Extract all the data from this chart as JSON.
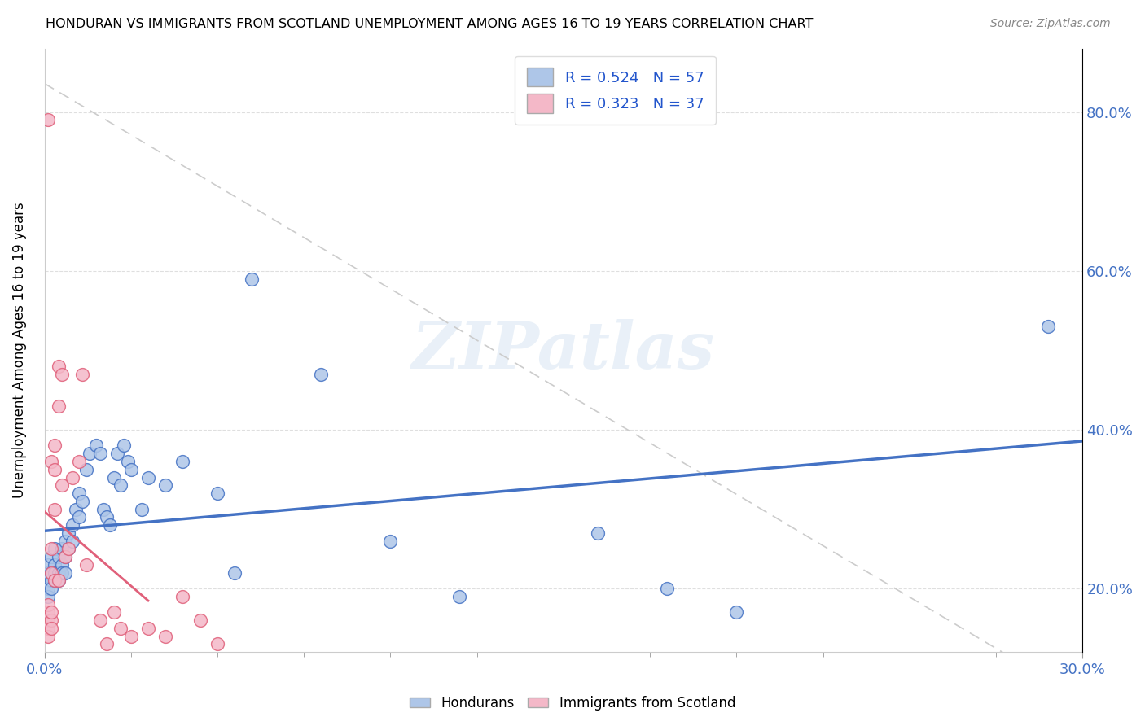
{
  "title": "HONDURAN VS IMMIGRANTS FROM SCOTLAND UNEMPLOYMENT AMONG AGES 16 TO 19 YEARS CORRELATION CHART",
  "source": "Source: ZipAtlas.com",
  "ylabel_label": "Unemployment Among Ages 16 to 19 years",
  "xlim": [
    0.0,
    0.3
  ],
  "ylim": [
    0.12,
    0.88
  ],
  "watermark": "ZIPatlas",
  "blue_R": 0.524,
  "blue_N": 57,
  "pink_R": 0.323,
  "pink_N": 37,
  "blue_color": "#4472c4",
  "blue_fill": "#aec6e8",
  "pink_color": "#e0607a",
  "pink_fill": "#f4b8c8",
  "ref_line_color": "#cccccc",
  "grid_color": "#d8d8d8",
  "blue_scatter_x": [
    0.001,
    0.001,
    0.001,
    0.001,
    0.001,
    0.002,
    0.002,
    0.002,
    0.002,
    0.003,
    0.003,
    0.003,
    0.003,
    0.004,
    0.004,
    0.004,
    0.005,
    0.005,
    0.005,
    0.006,
    0.006,
    0.006,
    0.007,
    0.007,
    0.008,
    0.008,
    0.009,
    0.01,
    0.01,
    0.011,
    0.012,
    0.013,
    0.015,
    0.016,
    0.017,
    0.018,
    0.019,
    0.02,
    0.021,
    0.022,
    0.023,
    0.024,
    0.025,
    0.028,
    0.03,
    0.035,
    0.04,
    0.05,
    0.055,
    0.06,
    0.08,
    0.1,
    0.12,
    0.16,
    0.18,
    0.2,
    0.29
  ],
  "blue_scatter_y": [
    0.21,
    0.22,
    0.2,
    0.23,
    0.19,
    0.21,
    0.22,
    0.24,
    0.2,
    0.23,
    0.22,
    0.21,
    0.25,
    0.22,
    0.24,
    0.21,
    0.23,
    0.25,
    0.22,
    0.26,
    0.24,
    0.22,
    0.27,
    0.25,
    0.28,
    0.26,
    0.3,
    0.29,
    0.32,
    0.31,
    0.35,
    0.37,
    0.38,
    0.37,
    0.3,
    0.29,
    0.28,
    0.34,
    0.37,
    0.33,
    0.38,
    0.36,
    0.35,
    0.3,
    0.34,
    0.33,
    0.36,
    0.32,
    0.22,
    0.59,
    0.47,
    0.26,
    0.19,
    0.27,
    0.2,
    0.17,
    0.53
  ],
  "pink_scatter_x": [
    0.001,
    0.001,
    0.001,
    0.001,
    0.001,
    0.001,
    0.002,
    0.002,
    0.002,
    0.002,
    0.002,
    0.002,
    0.003,
    0.003,
    0.003,
    0.003,
    0.004,
    0.004,
    0.004,
    0.005,
    0.005,
    0.006,
    0.007,
    0.008,
    0.01,
    0.011,
    0.012,
    0.016,
    0.018,
    0.02,
    0.022,
    0.025,
    0.03,
    0.035,
    0.04,
    0.045,
    0.05
  ],
  "pink_scatter_y": [
    0.16,
    0.15,
    0.14,
    0.17,
    0.18,
    0.79,
    0.16,
    0.15,
    0.17,
    0.22,
    0.25,
    0.36,
    0.21,
    0.3,
    0.35,
    0.38,
    0.21,
    0.43,
    0.48,
    0.33,
    0.47,
    0.24,
    0.25,
    0.34,
    0.36,
    0.47,
    0.23,
    0.16,
    0.13,
    0.17,
    0.15,
    0.14,
    0.15,
    0.14,
    0.19,
    0.16,
    0.13
  ],
  "yticks": [
    0.2,
    0.4,
    0.6,
    0.8
  ],
  "ytick_labels": [
    "20.0%",
    "40.0%",
    "60.0%",
    "80.0%"
  ],
  "xtick_labels_bottom": [
    "0.0%",
    "30.0%"
  ]
}
